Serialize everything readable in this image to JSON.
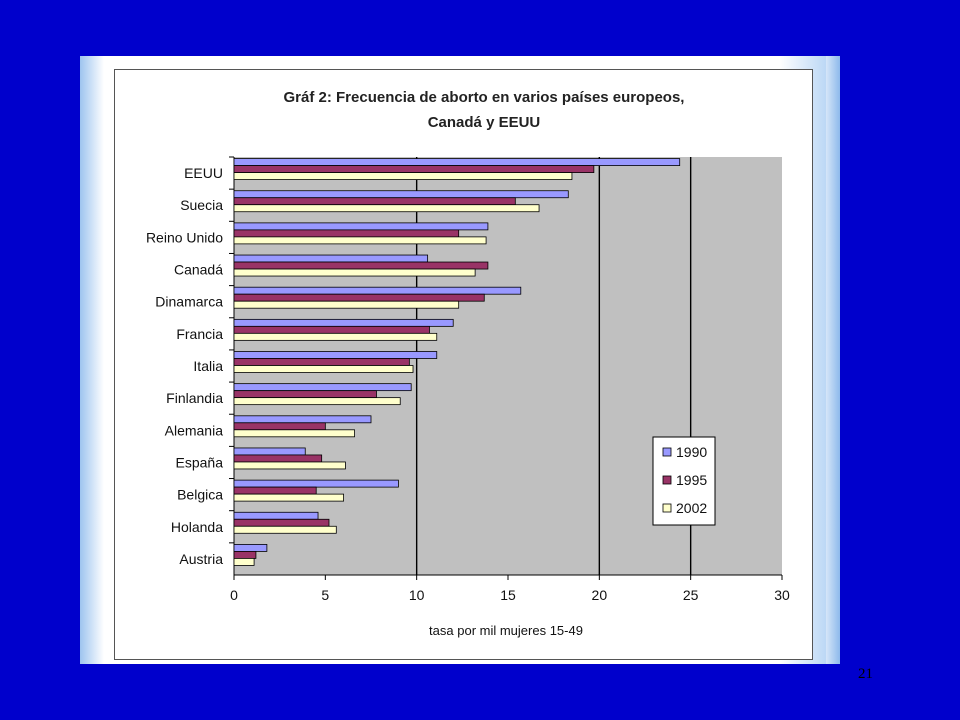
{
  "page_number": "21",
  "colors": {
    "background": "#0000cc",
    "plot_area": "#c0c0c0",
    "series_1990": "#9999ff",
    "series_1995": "#993366",
    "series_2002": "#ffffcc"
  },
  "chart_data": {
    "type": "bar",
    "orientation": "horizontal",
    "title": "Gráf 2: Frecuencia de aborto en varios países europeos,",
    "subtitle": "Canadá y EEUU",
    "xlabel": "tasa por mil mujeres 15-49",
    "ylabel": "",
    "xlim": [
      0,
      30
    ],
    "x_ticks": [
      "0",
      "5",
      "10",
      "15",
      "20",
      "25",
      "30"
    ],
    "grid": "vertical lines at 10, 20, 25",
    "legend_position": "bottom-right",
    "categories": [
      "EEUU",
      "Suecia",
      "Reino Unido",
      "Canadá",
      "Dinamarca",
      "Francia",
      "Italia",
      "Finlandia",
      "Alemania",
      "España",
      "Belgica",
      "Holanda",
      "Austria"
    ],
    "series": [
      {
        "name": "1990",
        "values": [
          24.4,
          18.3,
          13.9,
          10.6,
          15.7,
          12.0,
          11.1,
          9.7,
          7.5,
          3.9,
          9.0,
          4.6,
          1.8
        ]
      },
      {
        "name": "1995",
        "values": [
          19.7,
          15.4,
          12.3,
          13.9,
          13.7,
          10.7,
          9.6,
          7.8,
          5.0,
          4.8,
          4.5,
          5.2,
          1.2
        ]
      },
      {
        "name": "2002",
        "values": [
          18.5,
          16.7,
          13.8,
          13.2,
          12.3,
          11.1,
          9.8,
          9.1,
          6.6,
          6.1,
          6.0,
          5.6,
          1.1
        ]
      }
    ]
  }
}
